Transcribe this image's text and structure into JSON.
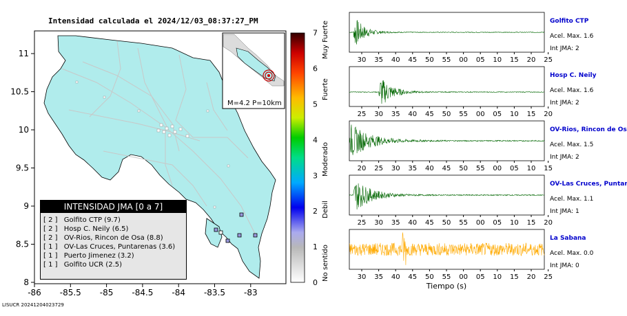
{
  "map": {
    "title": "Intensidad calculada el 2024/12/03_08:37:27_PM",
    "lat_ticks": [
      "11",
      "10.5",
      "10",
      "9.5",
      "9",
      "8.5",
      "8"
    ],
    "lon_ticks": [
      "-86",
      "-85.5",
      "-85",
      "-84.5",
      "-84",
      "-83.5",
      "-83"
    ],
    "inset_label": "M=4.2 P=10km",
    "legend_title": "INTENSIDAD JMA [0 a 7]",
    "legend_items": [
      {
        "level": "[ 2 ]",
        "station": "Golfito CTP (9.7)"
      },
      {
        "level": "[ 2 ]",
        "station": "Hosp C. Neily (6.5)"
      },
      {
        "level": "[ 2 ]",
        "station": "OV-Rios, Rincon de Osa (8.8)"
      },
      {
        "level": "[ 1 ]",
        "station": "OV-Las Cruces, Puntarenas (3.6)"
      },
      {
        "level": "[ 1 ]",
        "station": "Puerto Jimenez (3.2)"
      },
      {
        "level": "[ 1 ]",
        "station": "Golfito UCR (2.5)"
      }
    ],
    "colors": {
      "land": "#b0ecec",
      "sea": "#ffffff"
    }
  },
  "colorbar": {
    "ticks": [
      "0",
      "1",
      "2",
      "3",
      "4",
      "5",
      "6",
      "7"
    ],
    "labels": [
      "No sentido",
      "Debil",
      "Moderado",
      "Fuerte",
      "Muy Fuerte"
    ]
  },
  "footer": "LISUCR 20241204023729",
  "chart_data": [
    {
      "type": "line",
      "title": "Golfito CTP",
      "acel": "Acel. Max. 1.6",
      "int_jma": "Int JMA: 2",
      "color": "#006600",
      "x_ticks": [
        "30",
        "35",
        "40",
        "45",
        "50",
        "55",
        "00",
        "05",
        "10",
        "15",
        "20",
        "25"
      ],
      "envelope": {
        "onset": 0.02,
        "peak": 1.0,
        "decay": 0.05,
        "noise": 0.02
      }
    },
    {
      "type": "line",
      "title": "Hosp C. Neily",
      "acel": "Acel. Max. 1.6",
      "int_jma": "Int JMA: 2",
      "color": "#006600",
      "x_ticks": [
        "25",
        "30",
        "35",
        "40",
        "45",
        "50",
        "55",
        "00",
        "05",
        "10",
        "15",
        "20"
      ],
      "envelope": {
        "onset": 0.15,
        "peak": 1.0,
        "decay": 0.06,
        "noise": 0.02
      }
    },
    {
      "type": "line",
      "title": "OV-Rios, Rincon de Os",
      "acel": "Acel. Max. 1.5",
      "int_jma": "Int JMA: 2",
      "color": "#006600",
      "x_ticks": [
        "20",
        "25",
        "30",
        "35",
        "40",
        "45",
        "50",
        "55",
        "00",
        "05",
        "10",
        "15"
      ],
      "envelope": {
        "onset": 0.0,
        "peak": 1.0,
        "decay": 0.1,
        "noise": 0.03
      }
    },
    {
      "type": "line",
      "title": "OV-Las Cruces, Puntar",
      "acel": "Acel. Max. 1.1",
      "int_jma": "Int JMA: 1",
      "color": "#006600",
      "x_ticks": [
        "25",
        "30",
        "35",
        "40",
        "45",
        "50",
        "55",
        "00",
        "05",
        "10",
        "15",
        "20"
      ],
      "envelope": {
        "onset": 0.02,
        "peak": 1.0,
        "decay": 0.08,
        "noise": 0.03
      }
    },
    {
      "type": "line",
      "title": "La Sabana",
      "acel": "Acel. Max. 0.0",
      "int_jma": "Int JMA: 0",
      "color": "#ffaa00",
      "x_ticks": [
        "30",
        "35",
        "40",
        "45",
        "50",
        "55",
        "00",
        "05",
        "10",
        "15",
        "20",
        "25"
      ],
      "x_label": "Tiempo (s)",
      "envelope": {
        "onset": 0.0,
        "peak": 0.35,
        "decay": 0.0,
        "noise": 0.35,
        "spike": 0.28
      }
    }
  ]
}
